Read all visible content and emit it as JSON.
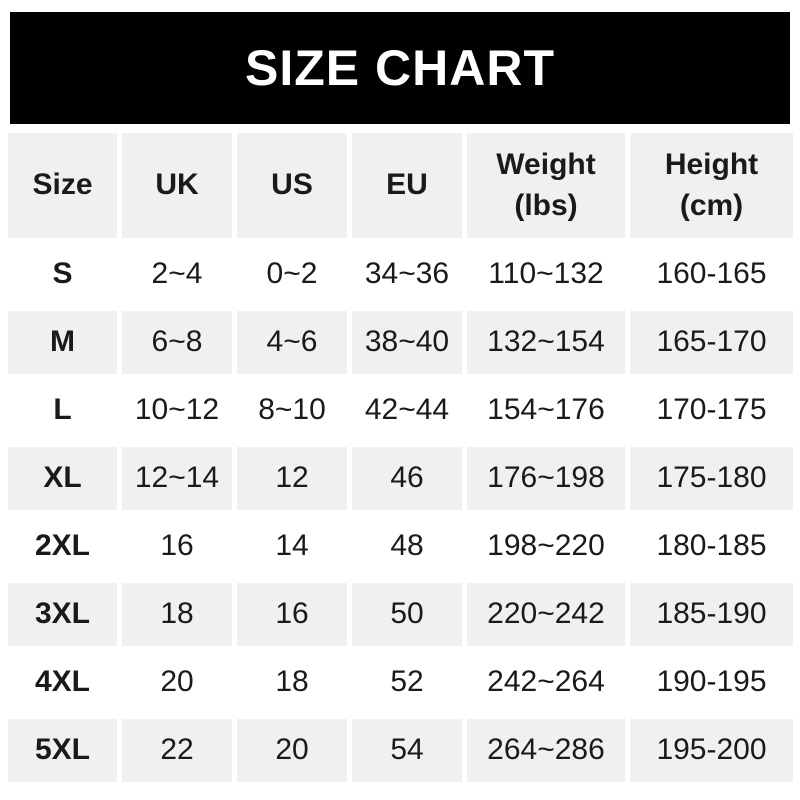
{
  "title": "SIZE CHART",
  "colors": {
    "banner_bg": "#010101",
    "banner_text": "#ffffff",
    "row_alt_bg": "#f0f0f1",
    "text": "#1a1a1c",
    "page_bg": "#ffffff"
  },
  "table": {
    "columns": [
      {
        "label": "Size"
      },
      {
        "label": "UK"
      },
      {
        "label": "US"
      },
      {
        "label": "EU"
      },
      {
        "label": "Weight",
        "sub": "(lbs)"
      },
      {
        "label": "Height",
        "sub": "(cm)"
      }
    ],
    "rows": [
      {
        "size": "S",
        "uk": "2~4",
        "us": "0~2",
        "eu": "34~36",
        "weight": "110~132",
        "height": "160-165"
      },
      {
        "size": "M",
        "uk": "6~8",
        "us": "4~6",
        "eu": "38~40",
        "weight": "132~154",
        "height": "165-170"
      },
      {
        "size": "L",
        "uk": "10~12",
        "us": "8~10",
        "eu": "42~44",
        "weight": "154~176",
        "height": "170-175"
      },
      {
        "size": "XL",
        "uk": "12~14",
        "us": "12",
        "eu": "46",
        "weight": "176~198",
        "height": "175-180"
      },
      {
        "size": "2XL",
        "uk": "16",
        "us": "14",
        "eu": "48",
        "weight": "198~220",
        "height": "180-185"
      },
      {
        "size": "3XL",
        "uk": "18",
        "us": "16",
        "eu": "50",
        "weight": "220~242",
        "height": "185-190"
      },
      {
        "size": "4XL",
        "uk": "20",
        "us": "18",
        "eu": "52",
        "weight": "242~264",
        "height": "190-195"
      },
      {
        "size": "5XL",
        "uk": "22",
        "us": "20",
        "eu": "54",
        "weight": "264~286",
        "height": "195-200"
      }
    ]
  },
  "chart_data": {
    "type": "table",
    "title": "SIZE CHART",
    "columns": [
      "Size",
      "UK",
      "US",
      "EU",
      "Weight (lbs)",
      "Height (cm)"
    ],
    "rows": [
      [
        "S",
        "2~4",
        "0~2",
        "34~36",
        "110~132",
        "160-165"
      ],
      [
        "M",
        "6~8",
        "4~6",
        "38~40",
        "132~154",
        "165-170"
      ],
      [
        "L",
        "10~12",
        "8~10",
        "42~44",
        "154~176",
        "170-175"
      ],
      [
        "XL",
        "12~14",
        "12",
        "46",
        "176~198",
        "175-180"
      ],
      [
        "2XL",
        "16",
        "14",
        "48",
        "198~220",
        "180-185"
      ],
      [
        "3XL",
        "18",
        "16",
        "50",
        "220~242",
        "185-190"
      ],
      [
        "4XL",
        "20",
        "18",
        "52",
        "242~264",
        "190-195"
      ],
      [
        "5XL",
        "22",
        "20",
        "54",
        "264~286",
        "195-200"
      ]
    ]
  }
}
